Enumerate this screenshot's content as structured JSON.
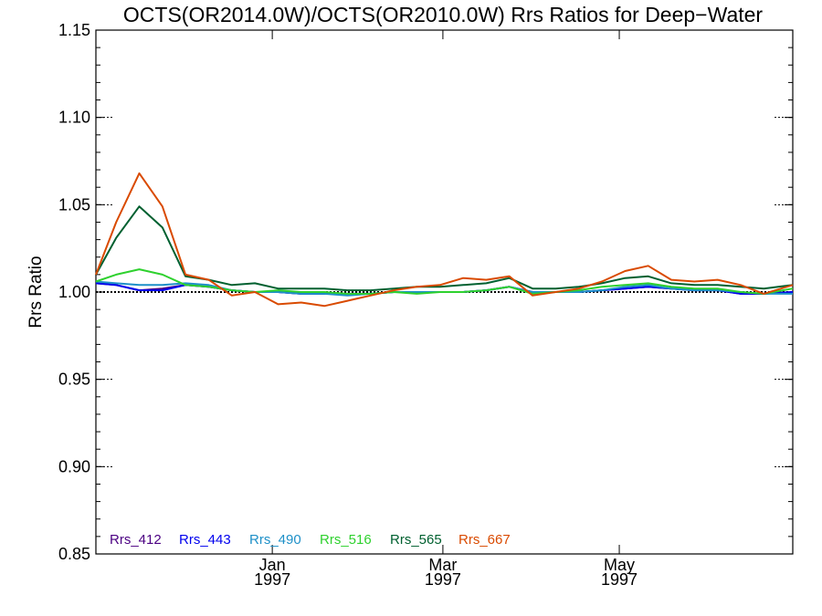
{
  "chart_data": {
    "type": "line",
    "title": "OCTS(OR2014.0W)/OCTS(OR2010.0W)  Rrs Ratios for Deep−Water",
    "xlabel": "",
    "ylabel": "Rrs Ratio",
    "ylim": [
      0.85,
      1.15
    ],
    "yticks": [
      "0.85",
      "0.90",
      "0.95",
      "1.00",
      "1.05",
      "1.10",
      "1.15"
    ],
    "x_axis_type": "date",
    "xlim": [
      "1996-11-01",
      "1997-06-30"
    ],
    "xticks": [
      {
        "date": "1997-01-01",
        "label": "Jan",
        "year": "1997"
      },
      {
        "date": "1997-03-01",
        "label": "Mar",
        "year": "1997"
      },
      {
        "date": "1997-05-01",
        "label": "May",
        "year": "1997"
      }
    ],
    "reference_line": 1.0,
    "grid": false,
    "legend_position": "bottom-left",
    "x": [
      "1996-11-01",
      "1996-11-08",
      "1996-11-16",
      "1996-11-24",
      "1996-12-02",
      "1996-12-10",
      "1996-12-18",
      "1996-12-26",
      "1997-01-03",
      "1997-01-11",
      "1997-01-19",
      "1997-01-27",
      "1997-02-04",
      "1997-02-12",
      "1997-02-20",
      "1997-02-28",
      "1997-03-08",
      "1997-03-16",
      "1997-03-24",
      "1997-04-01",
      "1997-04-09",
      "1997-04-17",
      "1997-04-25",
      "1997-05-03",
      "1997-05-11",
      "1997-05-19",
      "1997-05-27",
      "1997-06-04",
      "1997-06-12",
      "1997-06-20",
      "1997-06-30"
    ],
    "series": [
      {
        "name": "Rrs_412",
        "color": "#4b0082",
        "values": [
          1.005,
          1.004,
          1.001,
          1.002,
          1.004,
          1.003,
          1.001,
          1.0,
          1.0,
          0.999,
          0.999,
          0.999,
          0.999,
          1.0,
          1.0,
          1.0,
          1.0,
          1.001,
          1.003,
          1.0,
          1.0,
          1.0,
          1.001,
          1.002,
          1.003,
          1.002,
          1.001,
          1.001,
          0.999,
          0.999,
          1.0
        ]
      },
      {
        "name": "Rrs_443",
        "color": "#0000ee",
        "values": [
          1.005,
          1.004,
          1.001,
          1.001,
          1.004,
          1.003,
          1.001,
          1.0,
          1.0,
          0.999,
          0.999,
          0.999,
          0.999,
          1.0,
          1.0,
          1.0,
          1.0,
          1.001,
          1.003,
          1.0,
          1.0,
          1.0,
          1.001,
          1.002,
          1.003,
          1.002,
          1.001,
          1.001,
          0.999,
          0.999,
          1.0
        ]
      },
      {
        "name": "Rrs_490",
        "color": "#1e90c8",
        "values": [
          1.006,
          1.005,
          1.004,
          1.004,
          1.005,
          1.004,
          1.001,
          1.0,
          1.0,
          0.999,
          0.999,
          0.998,
          0.999,
          1.0,
          1.0,
          1.0,
          1.0,
          1.001,
          1.003,
          1.0,
          1.0,
          1.0,
          1.001,
          1.003,
          1.004,
          1.002,
          1.001,
          1.001,
          1.0,
          0.999,
          0.999
        ]
      },
      {
        "name": "Rrs_516",
        "color": "#2ed12e",
        "values": [
          1.006,
          1.01,
          1.013,
          1.01,
          1.004,
          1.003,
          1.001,
          1.0,
          1.001,
          1.0,
          1.0,
          0.999,
          0.999,
          1.0,
          0.999,
          1.0,
          1.0,
          1.001,
          1.003,
          0.999,
          1.0,
          1.001,
          1.003,
          1.004,
          1.005,
          1.003,
          1.002,
          1.002,
          1.0,
          0.999,
          1.002
        ]
      },
      {
        "name": "Rrs_565",
        "color": "#006030",
        "values": [
          1.01,
          1.031,
          1.049,
          1.037,
          1.009,
          1.007,
          1.004,
          1.005,
          1.002,
          1.002,
          1.002,
          1.001,
          1.001,
          1.002,
          1.003,
          1.003,
          1.004,
          1.005,
          1.008,
          1.002,
          1.002,
          1.003,
          1.005,
          1.008,
          1.009,
          1.005,
          1.004,
          1.004,
          1.003,
          1.002,
          1.004
        ]
      },
      {
        "name": "Rrs_667",
        "color": "#d94a00",
        "values": [
          1.01,
          1.04,
          1.068,
          1.049,
          1.01,
          1.007,
          0.998,
          1.0,
          0.993,
          0.994,
          0.992,
          0.995,
          0.998,
          1.001,
          1.003,
          1.004,
          1.008,
          1.007,
          1.009,
          0.998,
          1.0,
          1.002,
          1.006,
          1.012,
          1.015,
          1.007,
          1.006,
          1.007,
          1.004,
          0.999,
          1.004
        ]
      }
    ]
  }
}
